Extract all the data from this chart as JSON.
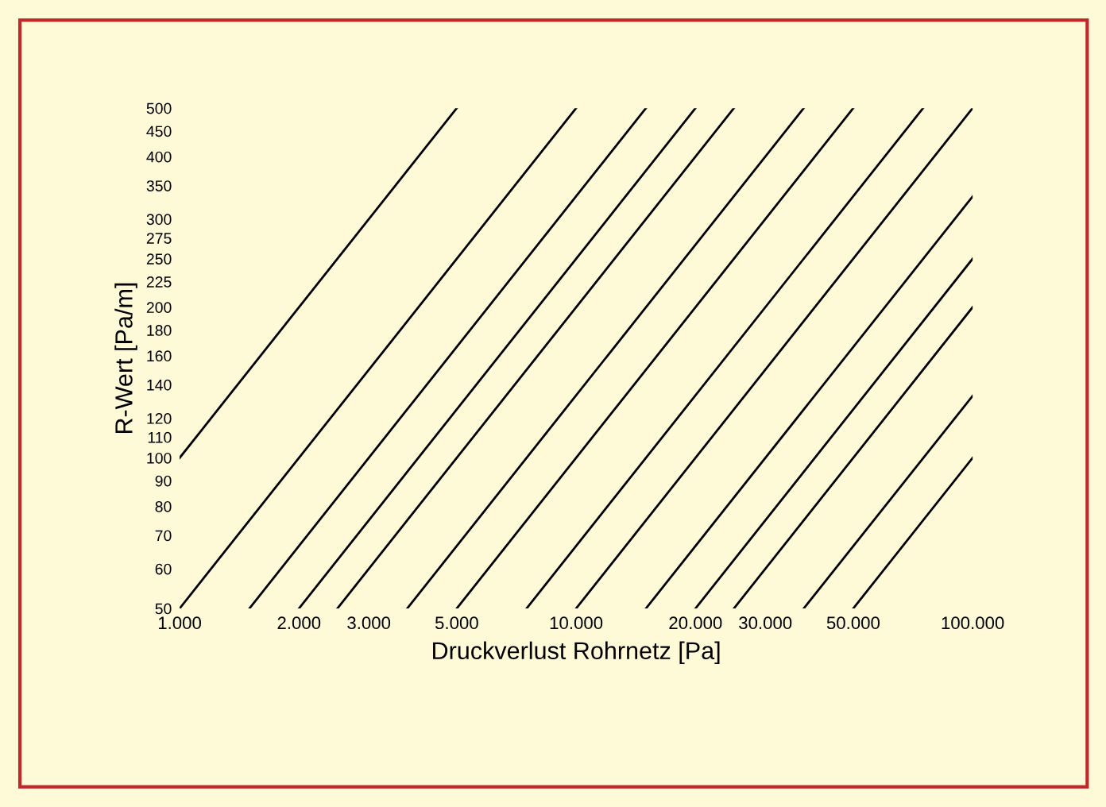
{
  "chart_data": {
    "type": "line",
    "xlabel": "Druckverlust Rohrnetz [Pa]",
    "ylabel": "R-Wert [Pa/m]",
    "log": "xy",
    "grid": false,
    "marker": "none",
    "line_style": "solid",
    "xlim": [
      1000,
      100000
    ],
    "ylim": [
      50,
      500
    ],
    "xticks": [
      {
        "value": 1000,
        "label": "1.000"
      },
      {
        "value": 2000,
        "label": "2.000"
      },
      {
        "value": 3000,
        "label": "3.000"
      },
      {
        "value": 5000,
        "label": "5.000"
      },
      {
        "value": 10000,
        "label": "10.000"
      },
      {
        "value": 20000,
        "label": "20.000"
      },
      {
        "value": 30000,
        "label": "30.000"
      },
      {
        "value": 50000,
        "label": "50.000"
      },
      {
        "value": 100000,
        "label": "100.000"
      }
    ],
    "yticks": [
      50,
      60,
      70,
      80,
      90,
      100,
      110,
      120,
      140,
      160,
      180,
      200,
      225,
      250,
      275,
      300,
      350,
      400,
      450,
      500
    ],
    "series": [
      {
        "color": "#000000",
        "x": [
          1000,
          5000
        ],
        "values": [
          100,
          500
        ]
      },
      {
        "color": "#000000",
        "x": [
          1000,
          10000
        ],
        "values": [
          50,
          500
        ]
      },
      {
        "color": "#000000",
        "x": [
          1500,
          15000
        ],
        "values": [
          50,
          500
        ]
      },
      {
        "color": "#000000",
        "x": [
          2000,
          20000
        ],
        "values": [
          50,
          500
        ]
      },
      {
        "color": "#000000",
        "x": [
          2500,
          25000
        ],
        "values": [
          50,
          500
        ]
      },
      {
        "color": "#000000",
        "x": [
          3750,
          37500
        ],
        "values": [
          50,
          500
        ]
      },
      {
        "color": "#000000",
        "x": [
          5000,
          50000
        ],
        "values": [
          50,
          500
        ]
      },
      {
        "color": "#000000",
        "x": [
          7500,
          75000
        ],
        "values": [
          50,
          500
        ]
      },
      {
        "color": "#000000",
        "x": [
          10000,
          100000
        ],
        "values": [
          50,
          500
        ]
      },
      {
        "color": "#000000",
        "x": [
          15000,
          100000
        ],
        "values": [
          50,
          333
        ]
      },
      {
        "color": "#000000",
        "x": [
          20000,
          100000
        ],
        "values": [
          50,
          250
        ]
      },
      {
        "color": "#000000",
        "x": [
          25000,
          100000
        ],
        "values": [
          50,
          200
        ]
      },
      {
        "color": "#000000",
        "x": [
          37500,
          100000
        ],
        "values": [
          50,
          133
        ]
      },
      {
        "color": "#000000",
        "x": [
          50000,
          100000
        ],
        "values": [
          50,
          100
        ]
      }
    ]
  }
}
